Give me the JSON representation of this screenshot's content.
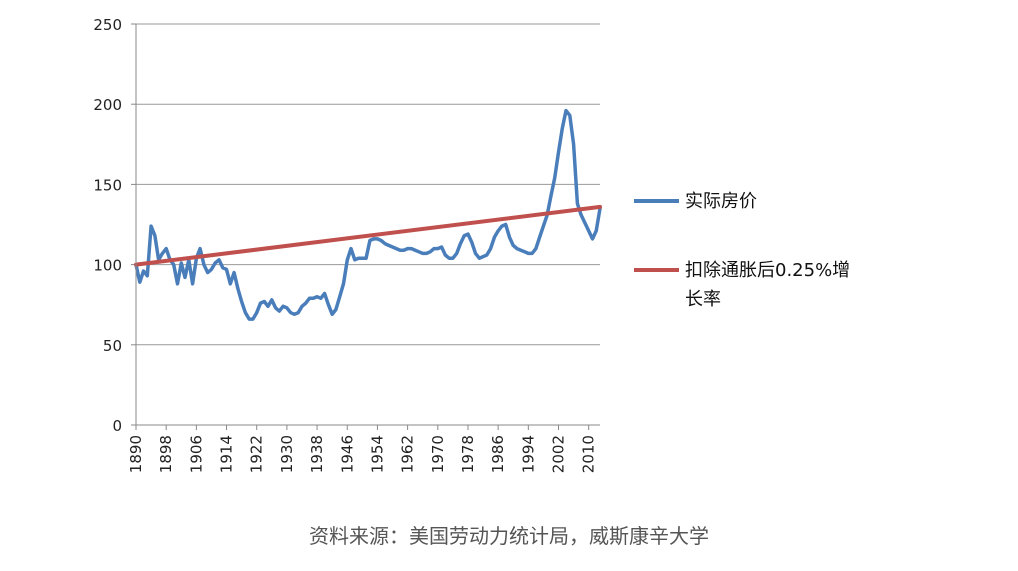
{
  "chart_data": {
    "type": "line",
    "title": "",
    "xlabel": "",
    "ylabel": "",
    "ylim": [
      0,
      250
    ],
    "yticks": [
      0,
      50,
      100,
      150,
      200,
      250
    ],
    "xlim": [
      1890,
      2013
    ],
    "xticks": [
      1890,
      1898,
      1906,
      1914,
      1922,
      1930,
      1938,
      1946,
      1954,
      1962,
      1970,
      1978,
      1986,
      1994,
      2002,
      2010
    ],
    "grid": "horizontal",
    "legend_position": "right",
    "series": [
      {
        "name": "实际房价",
        "color": "#4a7ebb",
        "x": [
          1890,
          1891,
          1892,
          1893,
          1894,
          1895,
          1896,
          1897,
          1898,
          1899,
          1900,
          1901,
          1902,
          1903,
          1904,
          1905,
          1906,
          1907,
          1908,
          1909,
          1910,
          1911,
          1912,
          1913,
          1914,
          1915,
          1916,
          1917,
          1918,
          1919,
          1920,
          1921,
          1922,
          1923,
          1924,
          1925,
          1926,
          1927,
          1928,
          1929,
          1930,
          1931,
          1932,
          1933,
          1934,
          1935,
          1936,
          1937,
          1938,
          1939,
          1940,
          1941,
          1942,
          1943,
          1944,
          1945,
          1946,
          1947,
          1948,
          1949,
          1950,
          1951,
          1952,
          1953,
          1954,
          1955,
          1956,
          1957,
          1958,
          1959,
          1960,
          1961,
          1962,
          1963,
          1964,
          1965,
          1966,
          1967,
          1968,
          1969,
          1970,
          1971,
          1972,
          1973,
          1974,
          1975,
          1976,
          1977,
          1978,
          1979,
          1980,
          1981,
          1982,
          1983,
          1984,
          1985,
          1986,
          1987,
          1988,
          1989,
          1990,
          1991,
          1992,
          1993,
          1994,
          1995,
          1996,
          1997,
          1998,
          1999,
          2000,
          2001,
          2002,
          2003,
          2004,
          2005,
          2006,
          2007,
          2008,
          2009,
          2010,
          2011,
          2012,
          2013
        ],
        "values": [
          100,
          89,
          96,
          93,
          124,
          118,
          103,
          107,
          110,
          103,
          100,
          88,
          101,
          92,
          103,
          88,
          104,
          110,
          100,
          95,
          97,
          101,
          103,
          98,
          97,
          88,
          95,
          85,
          77,
          70,
          66,
          66,
          70,
          76,
          77,
          74,
          78,
          73,
          71,
          74,
          73,
          70,
          69,
          70,
          74,
          76,
          79,
          79,
          80,
          79,
          82,
          75,
          69,
          72,
          80,
          88,
          103,
          110,
          103,
          104,
          104,
          104,
          115,
          116,
          116,
          115,
          113,
          112,
          111,
          110,
          109,
          109,
          110,
          110,
          109,
          108,
          107,
          107,
          108,
          110,
          110,
          111,
          106,
          104,
          104,
          107,
          113,
          118,
          119,
          114,
          107,
          104,
          105,
          106,
          110,
          117,
          121,
          124,
          125,
          117,
          112,
          110,
          109,
          108,
          107,
          107,
          110,
          117,
          124,
          131,
          143,
          154,
          170,
          185,
          196,
          193,
          175,
          138,
          131,
          126,
          121,
          116,
          121,
          135
        ]
      },
      {
        "name": "扣除通胀后0.25%增长率",
        "color": "#c0504d",
        "x": [
          1890,
          2013
        ],
        "values": [
          100,
          136
        ]
      }
    ]
  },
  "legend": {
    "items": [
      {
        "label": "实际房价",
        "color": "#4a7ebb"
      },
      {
        "label_line1": "扣除通胀后0.25%增",
        "label_line2": "长率",
        "color": "#c0504d"
      }
    ]
  },
  "source_note": "资料来源：美国劳动力统计局，威斯康辛大学"
}
